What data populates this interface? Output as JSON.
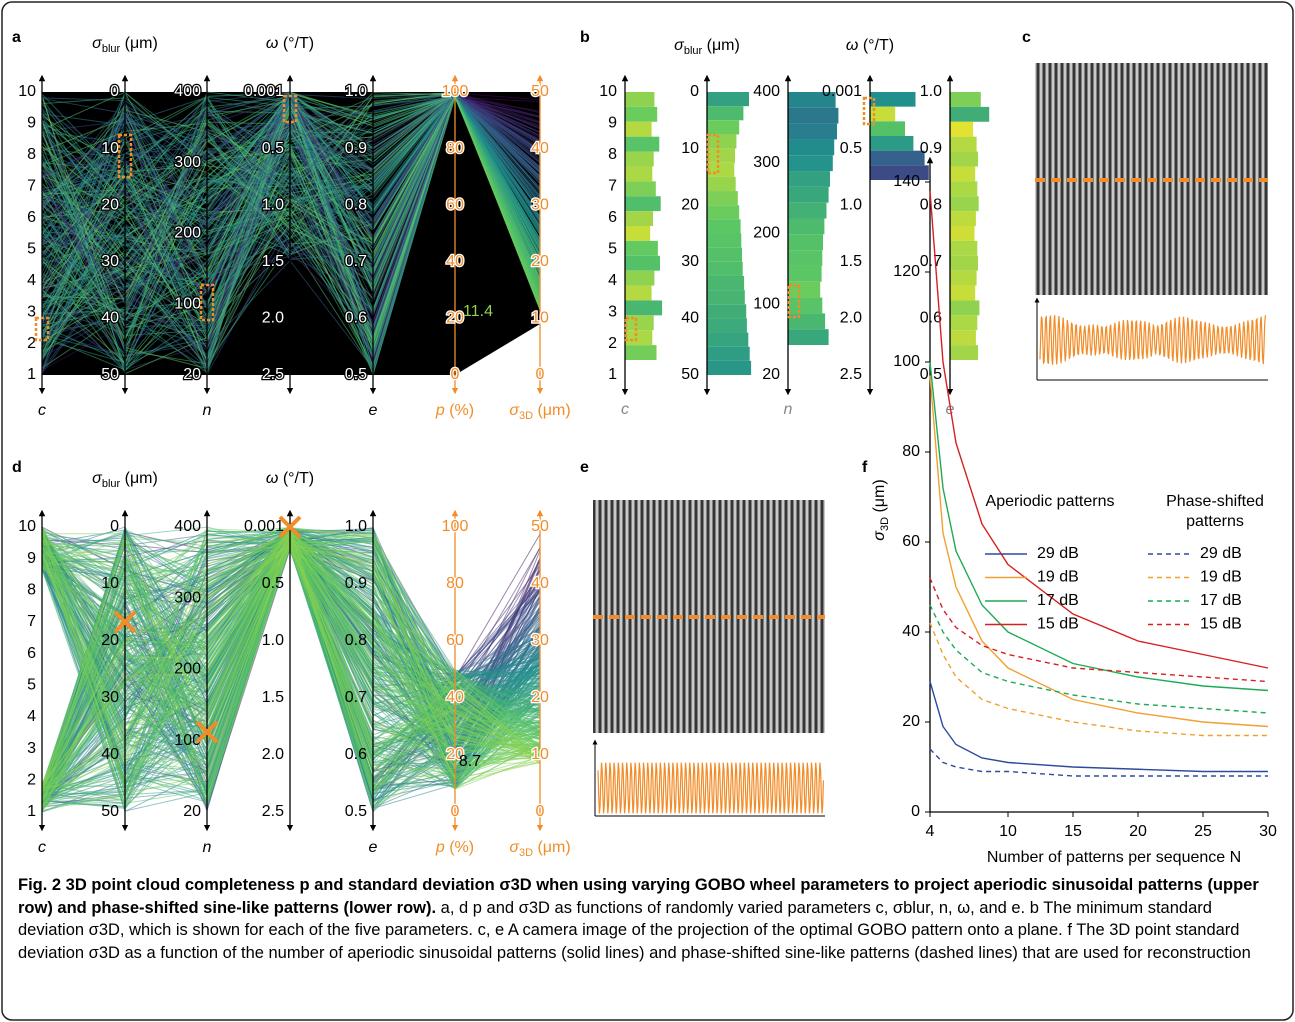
{
  "figure": {
    "panel_labels": [
      "a",
      "b",
      "c",
      "d",
      "e",
      "f"
    ],
    "panel_a": {
      "annotation": "11.4",
      "axes": [
        {
          "bottom": {
            "text": "c"
          },
          "ticks": [
            "10",
            "9",
            "8",
            "7",
            "6",
            "5",
            "4",
            "3",
            "2",
            "1"
          ]
        },
        {
          "title": {
            "text": "σ",
            "sub": "blur",
            "rest": " (μm)"
          },
          "ticks": [
            "0",
            "10",
            "20",
            "30",
            "40",
            "50"
          ]
        },
        {
          "bottom": {
            "text": "n"
          },
          "ticks": [
            "400",
            "300",
            "200",
            "100",
            "20"
          ]
        },
        {
          "title": {
            "text": "ω",
            "rest": " (°/T)"
          },
          "ticks": [
            "0.001",
            "0.5",
            "1.0",
            "1.5",
            "2.0",
            "2.5"
          ]
        },
        {
          "bottom": {
            "text": "e"
          },
          "ticks": [
            "1.0",
            "0.9",
            "0.8",
            "0.7",
            "0.6",
            "0.5"
          ]
        },
        {
          "bottom": {
            "text": "p",
            "rest": " (%)"
          },
          "ticks": [
            "100",
            "80",
            "60",
            "40",
            "20",
            "0"
          ]
        },
        {
          "bottom": {
            "text": "σ",
            "sub": "3D",
            "rest": " (μm)"
          },
          "ticks": [
            "50",
            "40",
            "30",
            "20",
            "10",
            "0"
          ]
        }
      ]
    },
    "panel_b": {
      "columns": [
        {
          "bottom": {
            "text": "c"
          },
          "ticks": [
            "10",
            "9",
            "8",
            "7",
            "6",
            "5",
            "4",
            "3",
            "2",
            "1"
          ],
          "bars": [
            13.2,
            13.6,
            12.8,
            13.9,
            13.1,
            12.9,
            13.4,
            14.1,
            13.0,
            12.6,
            13.7,
            14.0,
            13.2,
            12.8,
            14.3,
            13.1,
            12.9,
            13.5
          ]
        },
        {
          "title": {
            "text": "σ",
            "sub": "blur",
            "rest": " (μm)"
          },
          "ticks": [
            "0",
            "10",
            "20",
            "30",
            "40",
            "50"
          ],
          "bars": [
            15.0,
            14.2,
            13.6,
            13.2,
            13.0,
            12.9,
            13.1,
            13.4,
            13.6,
            13.8,
            13.9,
            14.0,
            14.1,
            14.3,
            14.4,
            14.6,
            14.7,
            14.9,
            15.1,
            15.3
          ]
        },
        {
          "bottom": {
            "text": "n"
          },
          "ticks": [
            "400",
            "300",
            "200",
            "100",
            "20"
          ],
          "bars": [
            15.8,
            16.2,
            16.0,
            15.6,
            15.4,
            15.0,
            14.8,
            14.5,
            14.2,
            14.0,
            13.9,
            13.8,
            13.6,
            13.9,
            14.3,
            14.8
          ]
        },
        {
          "title": {
            "text": "ω",
            "rest": " (°/T)"
          },
          "ticks": [
            "0.001",
            "0.5",
            "1.0",
            "1.5",
            "2.0",
            "2.5"
          ],
          "bars": [
            15.5,
            12.6,
            14.0,
            15.2,
            16.8,
            17.4
          ]
        },
        {
          "bottom": {
            "text": "e"
          },
          "ticks": [
            "1.0",
            "0.9",
            "0.8",
            "0.7",
            "0.6",
            "0.5"
          ],
          "bars": [
            13.4,
            14.6,
            12.3,
            12.8,
            13.0,
            12.6,
            12.9,
            13.1,
            12.7,
            12.5,
            12.9,
            13.0,
            12.8,
            12.6,
            13.2,
            12.9,
            12.7,
            13.0
          ]
        }
      ]
    },
    "panel_d": {
      "annotation": "8.7",
      "axes": [
        {
          "bottom": {
            "text": "c"
          },
          "ticks": [
            "10",
            "9",
            "8",
            "7",
            "6",
            "5",
            "4",
            "3",
            "2",
            "1"
          ]
        },
        {
          "title": {
            "text": "σ",
            "sub": "blur",
            "rest": " (μm)"
          },
          "ticks": [
            "0",
            "10",
            "20",
            "30",
            "40",
            "50"
          ]
        },
        {
          "bottom": {
            "text": "n"
          },
          "ticks": [
            "400",
            "300",
            "200",
            "100",
            "20"
          ]
        },
        {
          "title": {
            "text": "ω",
            "rest": " (°/T)"
          },
          "ticks": [
            "0.001",
            "0.5",
            "1.0",
            "1.5",
            "2.0",
            "2.5"
          ]
        },
        {
          "bottom": {
            "text": "e"
          },
          "ticks": [
            "1.0",
            "0.9",
            "0.8",
            "0.7",
            "0.6",
            "0.5"
          ]
        },
        {
          "bottom": {
            "text": "p",
            "rest": " (%)"
          },
          "ticks": [
            "100",
            "80",
            "60",
            "40",
            "20",
            "0"
          ]
        },
        {
          "bottom": {
            "text": "σ",
            "sub": "3D",
            "rest": " (μm)"
          },
          "ticks": [
            "50",
            "40",
            "30",
            "20",
            "10",
            "0"
          ]
        }
      ]
    },
    "caption": {
      "title": "Fig. 2 3D point cloud completeness p and standard deviation σ3D when using varying GOBO wheel parameters to project aperiodic sinusoidal patterns (upper row) and phase-shifted sine-like patterns (lower row).",
      "body": "a, d p and σ3D as functions of randomly varied parameters c, σblur, n, ω, and e. b The minimum standard deviation σ3D, which is shown for each of the five parameters. c, e A camera image of the projection of the optimal GOBO pattern onto a plane. f The 3D point standard deviation σ3D as a function of the number of aperiodic sinusoidal patterns (solid lines) and phase-shifted sine-like patterns (dashed lines) that are used for reconstruction"
    }
  },
  "chart_data": {
    "type": "line",
    "y_label": {
      "text": "σ",
      "sub": "3D",
      "rest": " (μm)"
    },
    "x_label": "Number of patterns per sequence N",
    "legend_titles": [
      "Aperiodic patterns",
      "Phase-shifted patterns"
    ],
    "x": [
      4,
      5,
      6,
      8,
      10,
      15,
      20,
      25,
      30
    ],
    "xlim": [
      4,
      30
    ],
    "xticks": [
      4,
      10,
      15,
      20,
      25,
      30
    ],
    "ylim": [
      0,
      140
    ],
    "yticks": [
      0,
      20,
      40,
      60,
      80,
      100,
      120,
      140
    ],
    "series": [
      {
        "name": "29 dB",
        "color": "#2e4a9e",
        "dashed": false,
        "values": [
          29,
          19,
          15,
          12,
          11,
          10,
          9.5,
          9,
          9
        ]
      },
      {
        "name": "19 dB",
        "color": "#f0a030",
        "dashed": false,
        "values": [
          97,
          62,
          50,
          38,
          32,
          25,
          22,
          20,
          19
        ]
      },
      {
        "name": "17 dB",
        "color": "#1faa55",
        "dashed": false,
        "values": [
          100,
          72,
          58,
          46,
          40,
          33,
          30,
          28,
          27
        ]
      },
      {
        "name": "15 dB",
        "color": "#d62020",
        "dashed": false,
        "values": [
          138,
          100,
          82,
          64,
          55,
          44,
          38,
          35,
          32
        ]
      },
      {
        "name": "29 dB",
        "color": "#2e4a9e",
        "dashed": true,
        "values": [
          14,
          11,
          10,
          9,
          9,
          8,
          8,
          8,
          8
        ]
      },
      {
        "name": "19 dB",
        "color": "#f0a030",
        "dashed": true,
        "values": [
          42,
          35,
          30,
          25,
          23,
          20,
          18,
          17,
          17
        ]
      },
      {
        "name": "17 dB",
        "color": "#1faa55",
        "dashed": true,
        "values": [
          46,
          40,
          36,
          31,
          29,
          26,
          24,
          23,
          22
        ]
      },
      {
        "name": "15 dB",
        "color": "#d62020",
        "dashed": true,
        "values": [
          52,
          45,
          41,
          37,
          35,
          32,
          31,
          30,
          29
        ]
      }
    ]
  }
}
